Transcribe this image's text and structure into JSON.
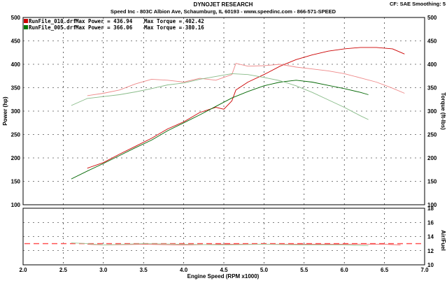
{
  "header": {
    "title": "DYNOJET RESEARCH",
    "subtitle": "Speed Inc - 803C Albion Ave, Schaumburg, IL 60193 - www.speedinc.com - 866-571-SPEED",
    "settings": "CF: SAE  Smoothing: 5"
  },
  "legend": [
    {
      "file": "RunFile_010.drf",
      "power_label": "Max Power = 436.94",
      "torque_label": "Max Torque = 402.42",
      "color": "#cc0000"
    },
    {
      "file": "RunFile_005.drf",
      "power_label": "Max Power = 366.06",
      "torque_label": "Max Torque = 380.16",
      "color": "#007700"
    }
  ],
  "chart_data": [
    {
      "type": "line",
      "xlabel": "Engine Speed (RPM x1000)",
      "ylabel": "Power (hp)",
      "ylabel_right": "Torque (ft-lbs)",
      "xlim": [
        2.0,
        7.0
      ],
      "ylim": [
        100,
        500
      ],
      "y_ticks": [
        100,
        150,
        200,
        250,
        300,
        350,
        400,
        450,
        500
      ],
      "grid": true,
      "legend_position": "top-left",
      "series": [
        {
          "name": "RunFile_010.drf",
          "measure": "power",
          "color": "#cc0000",
          "x": [
            2.8,
            3.0,
            3.2,
            3.4,
            3.6,
            3.8,
            4.0,
            4.2,
            4.4,
            4.5,
            4.6,
            4.65,
            4.8,
            5.0,
            5.2,
            5.4,
            5.6,
            5.8,
            6.0,
            6.2,
            6.4,
            6.6,
            6.75
          ],
          "y": [
            178,
            190,
            208,
            225,
            242,
            262,
            277,
            297,
            308,
            304,
            322,
            345,
            362,
            378,
            396,
            410,
            420,
            428,
            433,
            436,
            436,
            433,
            422
          ]
        },
        {
          "name": "RunFile_010.drf",
          "measure": "torque",
          "color": "#ee8888",
          "x": [
            2.8,
            3.0,
            3.2,
            3.4,
            3.6,
            3.8,
            4.0,
            4.2,
            4.4,
            4.6,
            4.65,
            4.8,
            5.0,
            5.2,
            5.4,
            5.6,
            5.8,
            6.0,
            6.2,
            6.4,
            6.6,
            6.75
          ],
          "y": [
            333,
            338,
            345,
            358,
            368,
            366,
            362,
            370,
            366,
            378,
            402,
            396,
            397,
            400,
            394,
            390,
            386,
            380,
            371,
            362,
            349,
            338
          ]
        },
        {
          "name": "RunFile_005.drf",
          "measure": "power",
          "color": "#006600",
          "x": [
            2.6,
            2.8,
            3.0,
            3.2,
            3.4,
            3.6,
            3.8,
            4.0,
            4.2,
            4.4,
            4.6,
            4.8,
            5.0,
            5.2,
            5.4,
            5.6,
            5.8,
            6.0,
            6.2,
            6.3
          ],
          "y": [
            155,
            172,
            188,
            205,
            222,
            238,
            258,
            275,
            292,
            310,
            328,
            342,
            354,
            362,
            366,
            362,
            355,
            348,
            340,
            335
          ]
        },
        {
          "name": "RunFile_005.drf",
          "measure": "torque",
          "color": "#88bb88",
          "x": [
            2.6,
            2.8,
            3.0,
            3.2,
            3.4,
            3.6,
            3.8,
            4.0,
            4.2,
            4.4,
            4.6,
            4.8,
            5.0,
            5.2,
            5.4,
            5.6,
            5.8,
            6.0,
            6.2,
            6.3
          ],
          "y": [
            312,
            327,
            331,
            335,
            341,
            348,
            356,
            360,
            368,
            374,
            380,
            378,
            372,
            365,
            354,
            340,
            324,
            308,
            290,
            282
          ]
        }
      ]
    },
    {
      "type": "line",
      "xlabel": "Engine Speed (RPM x1000)",
      "ylabel_right": "Air/Fuel",
      "xlim": [
        2.0,
        7.0
      ],
      "ylim": [
        10,
        18
      ],
      "y_ticks": [
        10,
        12,
        14,
        16,
        18
      ],
      "reference_line": 13.0,
      "grid": true,
      "series": [
        {
          "name": "RunFile_010.drf",
          "color": "#ee6666",
          "x": [
            2.8,
            3.0,
            3.5,
            4.0,
            4.5,
            5.0,
            5.5,
            6.0,
            6.5,
            6.7
          ],
          "y": [
            12.9,
            12.8,
            12.9,
            12.8,
            12.9,
            12.9,
            12.9,
            12.9,
            12.9,
            12.8
          ]
        },
        {
          "name": "RunFile_005.drf",
          "color": "#99cc99",
          "x": [
            2.6,
            2.8,
            3.0,
            3.5,
            4.0,
            4.5,
            5.0,
            5.5,
            6.0,
            6.3
          ],
          "y": [
            13.1,
            13.0,
            12.8,
            13.0,
            12.9,
            12.8,
            12.9,
            12.8,
            12.8,
            12.7
          ]
        }
      ]
    }
  ]
}
